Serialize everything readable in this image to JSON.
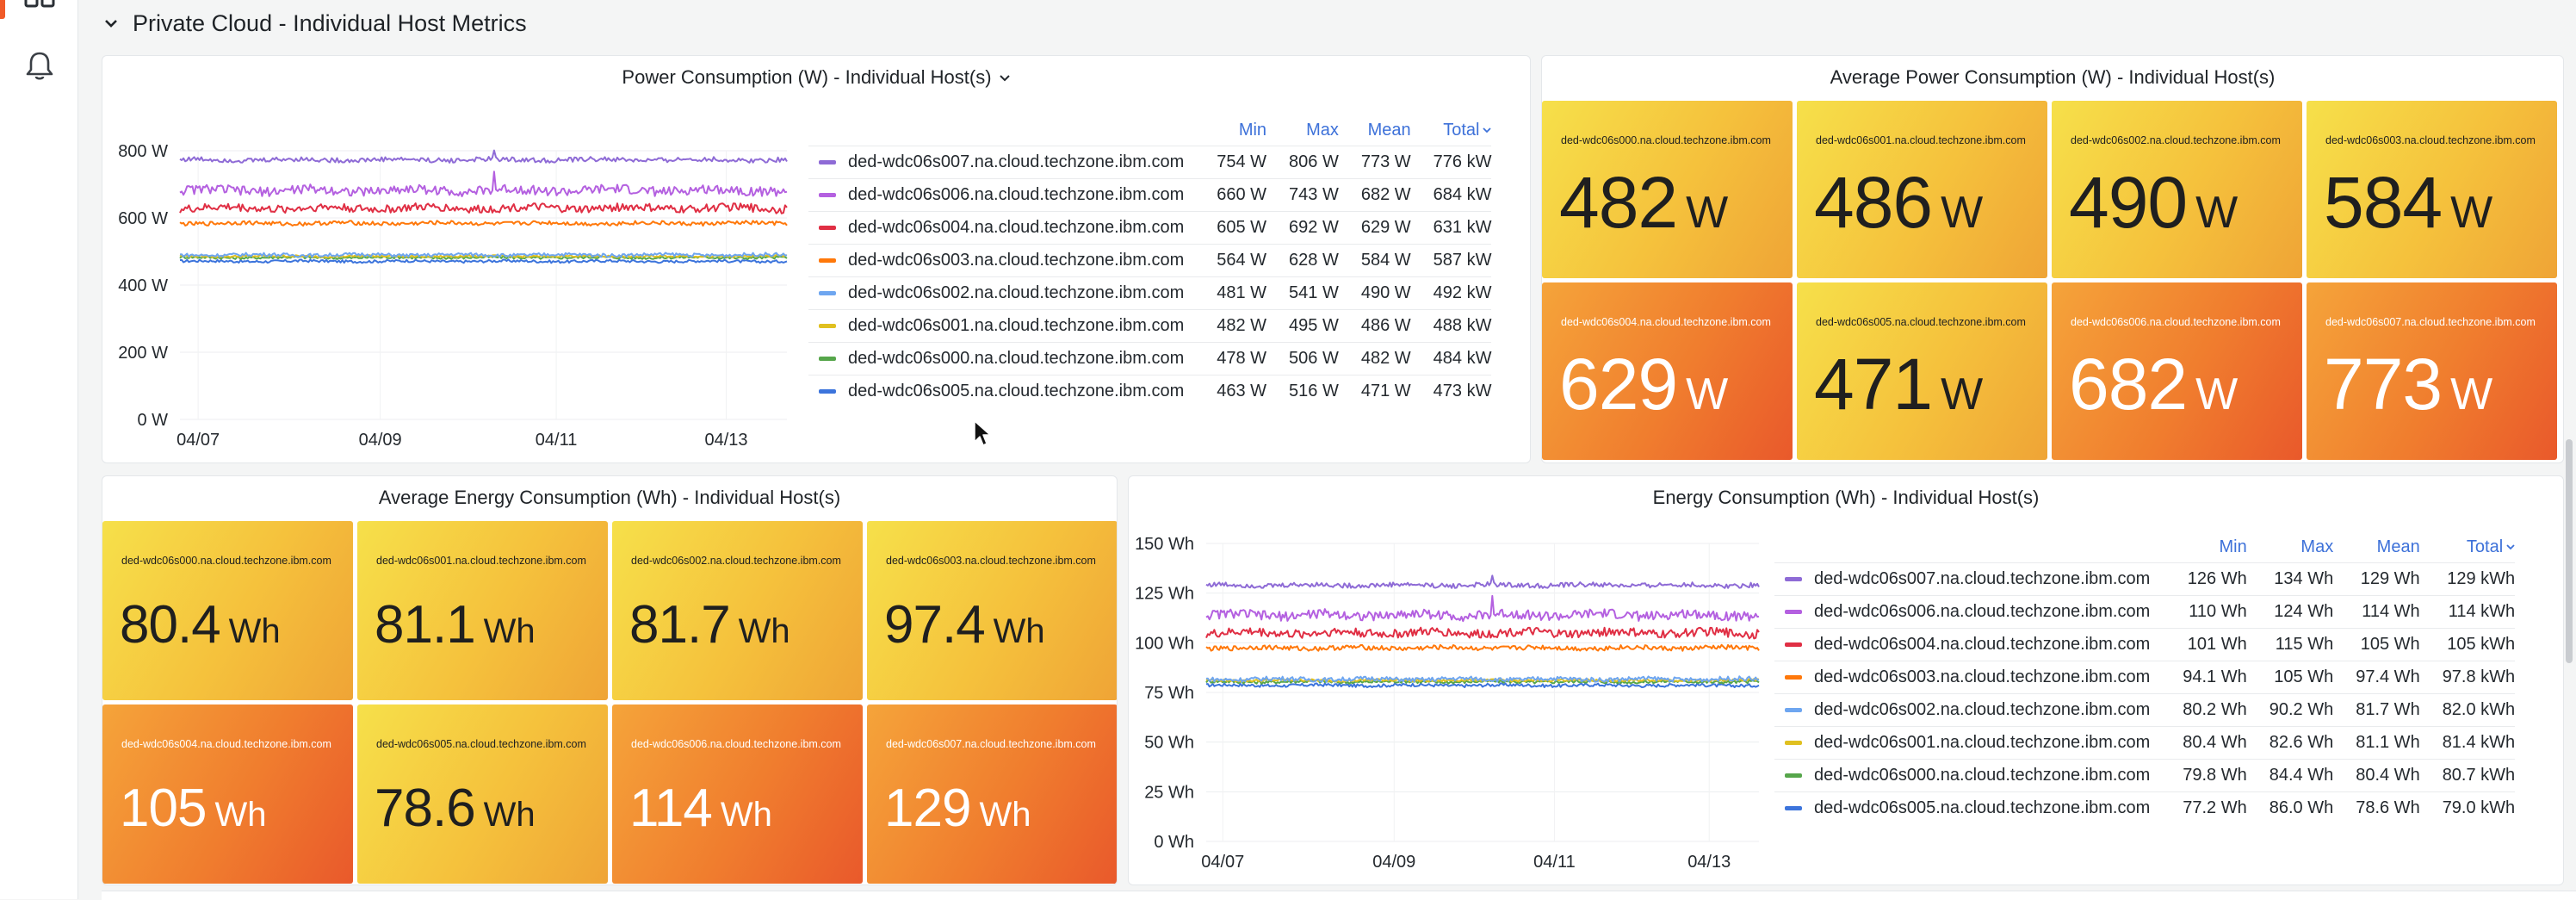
{
  "row": {
    "title": "Private Cloud - Individual Host Metrics"
  },
  "power_chart": {
    "title": "Power Consumption (W) - Individual Host(s)",
    "columns": {
      "min": "Min",
      "max": "Max",
      "mean": "Mean",
      "total": "Total"
    },
    "y_ticks": [
      "800 W",
      "600 W",
      "400 W",
      "200 W",
      "0 W"
    ],
    "x_ticks": [
      "04/07",
      "04/09",
      "04/11",
      "04/13"
    ],
    "rows": [
      {
        "name": "ded-wdc06s007.na.cloud.techzone.ibm.com",
        "color": "#8e6bd6",
        "min": "754 W",
        "max": "806 W",
        "mean": "773 W",
        "total": "776 kW"
      },
      {
        "name": "ded-wdc06s006.na.cloud.techzone.ibm.com",
        "color": "#b460e0",
        "min": "660 W",
        "max": "743 W",
        "mean": "682 W",
        "total": "684 kW"
      },
      {
        "name": "ded-wdc06s004.na.cloud.techzone.ibm.com",
        "color": "#e02f44",
        "min": "605 W",
        "max": "692 W",
        "mean": "629 W",
        "total": "631 kW"
      },
      {
        "name": "ded-wdc06s003.na.cloud.techzone.ibm.com",
        "color": "#ff780a",
        "min": "564 W",
        "max": "628 W",
        "mean": "584 W",
        "total": "587 kW"
      },
      {
        "name": "ded-wdc06s002.na.cloud.techzone.ibm.com",
        "color": "#6ea6f0",
        "min": "481 W",
        "max": "541 W",
        "mean": "490 W",
        "total": "492 kW"
      },
      {
        "name": "ded-wdc06s001.na.cloud.techzone.ibm.com",
        "color": "#e0c020",
        "min": "482 W",
        "max": "495 W",
        "mean": "486 W",
        "total": "488 kW"
      },
      {
        "name": "ded-wdc06s000.na.cloud.techzone.ibm.com",
        "color": "#56a64b",
        "min": "478 W",
        "max": "506 W",
        "mean": "482 W",
        "total": "484 kW"
      },
      {
        "name": "ded-wdc06s005.na.cloud.techzone.ibm.com",
        "color": "#3c74dc",
        "min": "463 W",
        "max": "516 W",
        "mean": "471 W",
        "total": "473 kW"
      }
    ]
  },
  "avg_power": {
    "title": "Average Power Consumption (W) - Individual Host(s)",
    "unit": "W",
    "tiles": [
      {
        "name": "ded-wdc06s000.na.cloud.techzone.ibm.com",
        "value": "482",
        "tone": "yellow"
      },
      {
        "name": "ded-wdc06s001.na.cloud.techzone.ibm.com",
        "value": "486",
        "tone": "yellow"
      },
      {
        "name": "ded-wdc06s002.na.cloud.techzone.ibm.com",
        "value": "490",
        "tone": "yellow"
      },
      {
        "name": "ded-wdc06s003.na.cloud.techzone.ibm.com",
        "value": "584",
        "tone": "yellow"
      },
      {
        "name": "ded-wdc06s004.na.cloud.techzone.ibm.com",
        "value": "629",
        "tone": "orange"
      },
      {
        "name": "ded-wdc06s005.na.cloud.techzone.ibm.com",
        "value": "471",
        "tone": "yellow"
      },
      {
        "name": "ded-wdc06s006.na.cloud.techzone.ibm.com",
        "value": "682",
        "tone": "orange"
      },
      {
        "name": "ded-wdc06s007.na.cloud.techzone.ibm.com",
        "value": "773",
        "tone": "orange"
      }
    ]
  },
  "avg_energy": {
    "title": "Average Energy Consumption (Wh) - Individual Host(s)",
    "unit": "Wh",
    "tiles": [
      {
        "name": "ded-wdc06s000.na.cloud.techzone.ibm.com",
        "value": "80.4",
        "tone": "yellow"
      },
      {
        "name": "ded-wdc06s001.na.cloud.techzone.ibm.com",
        "value": "81.1",
        "tone": "yellow"
      },
      {
        "name": "ded-wdc06s002.na.cloud.techzone.ibm.com",
        "value": "81.7",
        "tone": "yellow"
      },
      {
        "name": "ded-wdc06s003.na.cloud.techzone.ibm.com",
        "value": "97.4",
        "tone": "yellow"
      },
      {
        "name": "ded-wdc06s004.na.cloud.techzone.ibm.com",
        "value": "105",
        "tone": "orange"
      },
      {
        "name": "ded-wdc06s005.na.cloud.techzone.ibm.com",
        "value": "78.6",
        "tone": "yellow"
      },
      {
        "name": "ded-wdc06s006.na.cloud.techzone.ibm.com",
        "value": "114",
        "tone": "orange"
      },
      {
        "name": "ded-wdc06s007.na.cloud.techzone.ibm.com",
        "value": "129",
        "tone": "orange"
      }
    ]
  },
  "energy_chart": {
    "title": "Energy Consumption (Wh) - Individual Host(s)",
    "columns": {
      "min": "Min",
      "max": "Max",
      "mean": "Mean",
      "total": "Total"
    },
    "y_ticks": [
      "150 Wh",
      "125 Wh",
      "100 Wh",
      "75 Wh",
      "50 Wh",
      "25 Wh",
      "0 Wh"
    ],
    "x_ticks": [
      "04/07",
      "04/09",
      "04/11",
      "04/13"
    ],
    "rows": [
      {
        "name": "ded-wdc06s007.na.cloud.techzone.ibm.com",
        "color": "#8e6bd6",
        "min": "126 Wh",
        "max": "134 Wh",
        "mean": "129 Wh",
        "total": "129 kWh"
      },
      {
        "name": "ded-wdc06s006.na.cloud.techzone.ibm.com",
        "color": "#b460e0",
        "min": "110 Wh",
        "max": "124 Wh",
        "mean": "114 Wh",
        "total": "114 kWh"
      },
      {
        "name": "ded-wdc06s004.na.cloud.techzone.ibm.com",
        "color": "#e02f44",
        "min": "101 Wh",
        "max": "115 Wh",
        "mean": "105 Wh",
        "total": "105 kWh"
      },
      {
        "name": "ded-wdc06s003.na.cloud.techzone.ibm.com",
        "color": "#ff780a",
        "min": "94.1 Wh",
        "max": "105 Wh",
        "mean": "97.4 Wh",
        "total": "97.8 kWh"
      },
      {
        "name": "ded-wdc06s002.na.cloud.techzone.ibm.com",
        "color": "#6ea6f0",
        "min": "80.2 Wh",
        "max": "90.2 Wh",
        "mean": "81.7 Wh",
        "total": "82.0 kWh"
      },
      {
        "name": "ded-wdc06s001.na.cloud.techzone.ibm.com",
        "color": "#e0c020",
        "min": "80.4 Wh",
        "max": "82.6 Wh",
        "mean": "81.1 Wh",
        "total": "81.4 kWh"
      },
      {
        "name": "ded-wdc06s000.na.cloud.techzone.ibm.com",
        "color": "#56a64b",
        "min": "79.8 Wh",
        "max": "84.4 Wh",
        "mean": "80.4 Wh",
        "total": "80.7 kWh"
      },
      {
        "name": "ded-wdc06s005.na.cloud.techzone.ibm.com",
        "color": "#3c74dc",
        "min": "77.2 Wh",
        "max": "86.0 Wh",
        "mean": "78.6 Wh",
        "total": "79.0 kWh"
      }
    ]
  },
  "chart_data": [
    {
      "type": "line",
      "title": "Power Consumption (W) - Individual Host(s)",
      "ylim": [
        0,
        800
      ],
      "y_ticks": [
        0,
        200,
        400,
        600,
        800
      ],
      "x_ticks": [
        "04/07",
        "04/09",
        "04/11",
        "04/13"
      ],
      "legend": "right",
      "series": [
        {
          "name": "ded-wdc06s007.na.cloud.techzone.ibm.com",
          "values": [
            773
          ]
        },
        {
          "name": "ded-wdc06s006.na.cloud.techzone.ibm.com",
          "values": [
            682
          ]
        },
        {
          "name": "ded-wdc06s004.na.cloud.techzone.ibm.com",
          "values": [
            629
          ]
        },
        {
          "name": "ded-wdc06s003.na.cloud.techzone.ibm.com",
          "values": [
            584
          ]
        },
        {
          "name": "ded-wdc06s002.na.cloud.techzone.ibm.com",
          "values": [
            490
          ]
        },
        {
          "name": "ded-wdc06s001.na.cloud.techzone.ibm.com",
          "values": [
            486
          ]
        },
        {
          "name": "ded-wdc06s000.na.cloud.techzone.ibm.com",
          "values": [
            482
          ]
        },
        {
          "name": "ded-wdc06s005.na.cloud.techzone.ibm.com",
          "values": [
            471
          ]
        }
      ]
    },
    {
      "type": "line",
      "title": "Energy Consumption (Wh) - Individual Host(s)",
      "ylim": [
        0,
        150
      ],
      "y_ticks": [
        0,
        25,
        50,
        75,
        100,
        125,
        150
      ],
      "x_ticks": [
        "04/07",
        "04/09",
        "04/11",
        "04/13"
      ],
      "legend": "right",
      "series": [
        {
          "name": "ded-wdc06s007.na.cloud.techzone.ibm.com",
          "values": [
            129
          ]
        },
        {
          "name": "ded-wdc06s006.na.cloud.techzone.ibm.com",
          "values": [
            114
          ]
        },
        {
          "name": "ded-wdc06s004.na.cloud.techzone.ibm.com",
          "values": [
            105
          ]
        },
        {
          "name": "ded-wdc06s003.na.cloud.techzone.ibm.com",
          "values": [
            97.4
          ]
        },
        {
          "name": "ded-wdc06s002.na.cloud.techzone.ibm.com",
          "values": [
            81.7
          ]
        },
        {
          "name": "ded-wdc06s001.na.cloud.techzone.ibm.com",
          "values": [
            81.1
          ]
        },
        {
          "name": "ded-wdc06s000.na.cloud.techzone.ibm.com",
          "values": [
            80.4
          ]
        },
        {
          "name": "ded-wdc06s005.na.cloud.techzone.ibm.com",
          "values": [
            78.6
          ]
        }
      ]
    }
  ]
}
